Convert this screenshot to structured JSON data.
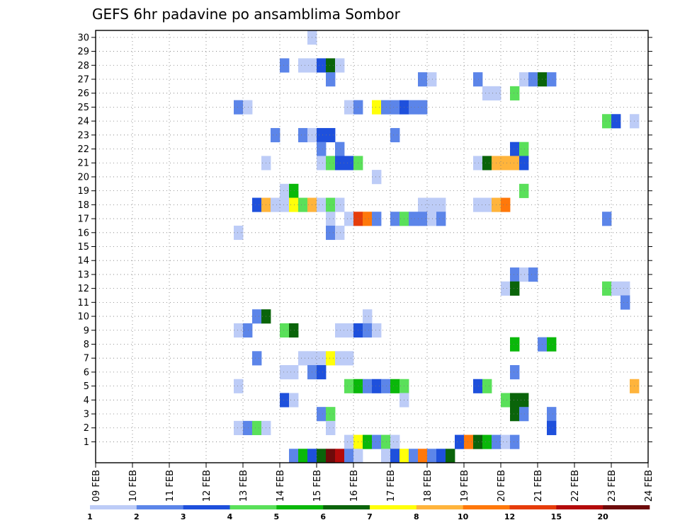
{
  "chart_data": {
    "type": "heatmap",
    "title": "GEFS 6hr padavine po ansamblima Sombor",
    "x_tick_labels": [
      "09 FEB",
      "10 FEB",
      "11 FEB",
      "12 FEB",
      "13 FEB",
      "14 FEB",
      "15 FEB",
      "16 FEB",
      "17 FEB",
      "18 FEB",
      "19 FEB",
      "20 FEB",
      "21 FEB",
      "22 FEB",
      "23 FEB",
      "24 FEB"
    ],
    "y_range": [
      0,
      30
    ],
    "y_ticks": [
      1,
      2,
      3,
      4,
      5,
      6,
      7,
      8,
      9,
      10,
      11,
      12,
      13,
      14,
      15,
      16,
      17,
      18,
      19,
      20,
      21,
      22,
      23,
      24,
      25,
      26,
      27,
      28,
      29,
      30
    ],
    "steps_per_day": 4,
    "grid": true,
    "colorbar": {
      "labels": [
        "1",
        "2",
        "3",
        "4",
        "5",
        "6",
        "7",
        "8",
        "10",
        "12",
        "15",
        "20"
      ],
      "colors": [
        "#bdccf7",
        "#5c85e9",
        "#1e50dc",
        "#5ae05a",
        "#0ab80a",
        "#0a640a",
        "#ffff0a",
        "#ffb43c",
        "#ff780a",
        "#e63c0a",
        "#b40a0a",
        "#6e0a0a"
      ]
    },
    "cells": [
      [
        30,
        14.75,
        0
      ],
      [
        28,
        14.0,
        1
      ],
      [
        28,
        14.5,
        0
      ],
      [
        28,
        14.75,
        0
      ],
      [
        28,
        15.0,
        2
      ],
      [
        28,
        15.25,
        5
      ],
      [
        28,
        15.5,
        0
      ],
      [
        27,
        15.25,
        1
      ],
      [
        27,
        17.75,
        1
      ],
      [
        27,
        18.0,
        0
      ],
      [
        27,
        19.25,
        1
      ],
      [
        27,
        20.5,
        0
      ],
      [
        27,
        20.75,
        1
      ],
      [
        27,
        21.0,
        5
      ],
      [
        27,
        21.25,
        1
      ],
      [
        26,
        19.5,
        0
      ],
      [
        26,
        19.75,
        0
      ],
      [
        26,
        20.25,
        3
      ],
      [
        25,
        12.75,
        1
      ],
      [
        25,
        13.0,
        0
      ],
      [
        25,
        15.75,
        0
      ],
      [
        25,
        16.0,
        1
      ],
      [
        25,
        16.5,
        6
      ],
      [
        25,
        16.75,
        1
      ],
      [
        25,
        17.0,
        1
      ],
      [
        25,
        17.25,
        2
      ],
      [
        25,
        17.5,
        1
      ],
      [
        25,
        17.75,
        1
      ],
      [
        24,
        22.75,
        3
      ],
      [
        24,
        23.0,
        2
      ],
      [
        24,
        23.5,
        0
      ],
      [
        23,
        13.75,
        1
      ],
      [
        23,
        14.5,
        1
      ],
      [
        23,
        14.75,
        0
      ],
      [
        23,
        15.0,
        2
      ],
      [
        23,
        15.25,
        2
      ],
      [
        23,
        17.0,
        1
      ],
      [
        22,
        15.0,
        1
      ],
      [
        22,
        15.5,
        1
      ],
      [
        22,
        20.25,
        2
      ],
      [
        22,
        20.5,
        3
      ],
      [
        21,
        13.5,
        0
      ],
      [
        21,
        15.0,
        0
      ],
      [
        21,
        15.25,
        3
      ],
      [
        21,
        15.5,
        2
      ],
      [
        21,
        15.75,
        2
      ],
      [
        21,
        16.0,
        3
      ],
      [
        21,
        19.25,
        0
      ],
      [
        21,
        19.5,
        5
      ],
      [
        21,
        19.75,
        7
      ],
      [
        21,
        20.0,
        7
      ],
      [
        21,
        20.25,
        7
      ],
      [
        21,
        20.5,
        2
      ],
      [
        20,
        16.5,
        0
      ],
      [
        19,
        14.0,
        0
      ],
      [
        19,
        14.25,
        4
      ],
      [
        19,
        20.5,
        3
      ],
      [
        18,
        13.25,
        2
      ],
      [
        18,
        13.5,
        7
      ],
      [
        18,
        13.75,
        0
      ],
      [
        18,
        14.0,
        0
      ],
      [
        18,
        14.25,
        6
      ],
      [
        18,
        14.5,
        3
      ],
      [
        18,
        14.75,
        7
      ],
      [
        18,
        15.0,
        0
      ],
      [
        18,
        15.25,
        3
      ],
      [
        18,
        15.5,
        0
      ],
      [
        18,
        17.75,
        0
      ],
      [
        18,
        18.0,
        0
      ],
      [
        18,
        18.25,
        0
      ],
      [
        18,
        19.25,
        0
      ],
      [
        18,
        19.5,
        0
      ],
      [
        18,
        19.75,
        7
      ],
      [
        18,
        20.0,
        8
      ],
      [
        17,
        15.25,
        0
      ],
      [
        17,
        15.75,
        0
      ],
      [
        17,
        16.0,
        9
      ],
      [
        17,
        16.25,
        8
      ],
      [
        17,
        16.5,
        1
      ],
      [
        17,
        17.0,
        1
      ],
      [
        17,
        17.25,
        3
      ],
      [
        17,
        17.5,
        1
      ],
      [
        17,
        17.75,
        1
      ],
      [
        17,
        18.0,
        0
      ],
      [
        17,
        18.25,
        1
      ],
      [
        17,
        22.75,
        1
      ],
      [
        16,
        12.75,
        0
      ],
      [
        16,
        15.25,
        1
      ],
      [
        16,
        15.5,
        0
      ],
      [
        13,
        20.25,
        1
      ],
      [
        13,
        20.5,
        0
      ],
      [
        13,
        20.75,
        1
      ],
      [
        12,
        20.0,
        0
      ],
      [
        12,
        20.25,
        5
      ],
      [
        12,
        22.75,
        3
      ],
      [
        12,
        23.0,
        0
      ],
      [
        12,
        23.25,
        0
      ],
      [
        11,
        23.25,
        1
      ],
      [
        10,
        13.25,
        1
      ],
      [
        10,
        13.5,
        5
      ],
      [
        10,
        16.25,
        0
      ],
      [
        9,
        12.75,
        0
      ],
      [
        9,
        13.0,
        1
      ],
      [
        9,
        14.0,
        3
      ],
      [
        9,
        14.25,
        5
      ],
      [
        9,
        15.5,
        0
      ],
      [
        9,
        15.75,
        0
      ],
      [
        9,
        16.0,
        2
      ],
      [
        9,
        16.25,
        1
      ],
      [
        9,
        16.5,
        0
      ],
      [
        8,
        20.25,
        4
      ],
      [
        8,
        21.0,
        1
      ],
      [
        8,
        21.25,
        4
      ],
      [
        7,
        13.25,
        1
      ],
      [
        7,
        14.5,
        0
      ],
      [
        7,
        14.75,
        0
      ],
      [
        7,
        15.0,
        0
      ],
      [
        7,
        15.25,
        6
      ],
      [
        7,
        15.5,
        0
      ],
      [
        7,
        15.75,
        0
      ],
      [
        6,
        14.0,
        0
      ],
      [
        6,
        14.25,
        0
      ],
      [
        6,
        14.75,
        1
      ],
      [
        6,
        15.0,
        2
      ],
      [
        6,
        20.25,
        1
      ],
      [
        5,
        12.75,
        0
      ],
      [
        5,
        15.75,
        3
      ],
      [
        5,
        16.0,
        4
      ],
      [
        5,
        16.25,
        1
      ],
      [
        5,
        16.5,
        2
      ],
      [
        5,
        16.75,
        1
      ],
      [
        5,
        17.0,
        4
      ],
      [
        5,
        17.25,
        3
      ],
      [
        5,
        19.25,
        2
      ],
      [
        5,
        19.5,
        3
      ],
      [
        5,
        23.5,
        7
      ],
      [
        4,
        14.0,
        2
      ],
      [
        4,
        14.25,
        0
      ],
      [
        4,
        17.25,
        0
      ],
      [
        4,
        20.0,
        3
      ],
      [
        4,
        20.25,
        5
      ],
      [
        4,
        20.5,
        5
      ],
      [
        3,
        15.0,
        1
      ],
      [
        3,
        15.25,
        3
      ],
      [
        3,
        20.25,
        5
      ],
      [
        3,
        20.5,
        1
      ],
      [
        3,
        21.25,
        1
      ],
      [
        2,
        12.75,
        0
      ],
      [
        2,
        13.0,
        1
      ],
      [
        2,
        13.25,
        3
      ],
      [
        2,
        13.5,
        0
      ],
      [
        2,
        15.25,
        0
      ],
      [
        2,
        21.25,
        2
      ],
      [
        1,
        15.75,
        0
      ],
      [
        1,
        16.0,
        6
      ],
      [
        1,
        16.25,
        4
      ],
      [
        1,
        16.5,
        1
      ],
      [
        1,
        16.75,
        3
      ],
      [
        1,
        17.0,
        0
      ],
      [
        1,
        18.75,
        2
      ],
      [
        1,
        19.0,
        8
      ],
      [
        1,
        19.25,
        5
      ],
      [
        1,
        19.5,
        4
      ],
      [
        1,
        19.75,
        1
      ],
      [
        1,
        20.0,
        0
      ],
      [
        1,
        20.25,
        1
      ],
      [
        0,
        14.25,
        1
      ],
      [
        0,
        14.5,
        4
      ],
      [
        0,
        14.75,
        2
      ],
      [
        0,
        15.0,
        5
      ],
      [
        0,
        15.25,
        11
      ],
      [
        0,
        15.5,
        10
      ],
      [
        0,
        15.75,
        1
      ],
      [
        0,
        16.0,
        0
      ],
      [
        0,
        16.75,
        0
      ],
      [
        0,
        17.0,
        2
      ],
      [
        0,
        17.25,
        6
      ],
      [
        0,
        17.5,
        1
      ],
      [
        0,
        17.75,
        8
      ],
      [
        0,
        18.0,
        1
      ],
      [
        0,
        18.25,
        2
      ],
      [
        0,
        18.5,
        5
      ]
    ]
  }
}
